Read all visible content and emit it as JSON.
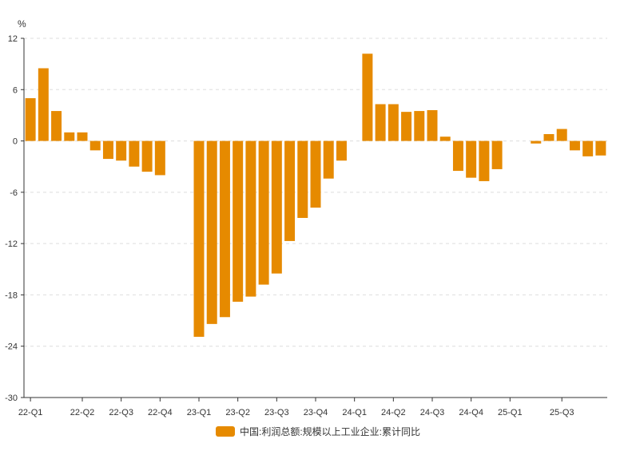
{
  "chart_data": {
    "type": "bar",
    "title": "",
    "xlabel": "",
    "ylabel": "%",
    "ylim": [
      -30,
      12
    ],
    "yticks": [
      12,
      6,
      0,
      -6,
      -12,
      -18,
      -24,
      -30
    ],
    "xtick_labels": [
      {
        "label": "22-Q1",
        "index": 0
      },
      {
        "label": "22-Q2",
        "index": 4
      },
      {
        "label": "22-Q3",
        "index": 7
      },
      {
        "label": "22-Q4",
        "index": 10
      },
      {
        "label": "23-Q1",
        "index": 13
      },
      {
        "label": "23-Q2",
        "index": 16
      },
      {
        "label": "23-Q3",
        "index": 19
      },
      {
        "label": "23-Q4",
        "index": 22
      },
      {
        "label": "24-Q1",
        "index": 25
      },
      {
        "label": "24-Q2",
        "index": 28
      },
      {
        "label": "24-Q3",
        "index": 31
      },
      {
        "label": "24-Q4",
        "index": 34
      },
      {
        "label": "25-Q1",
        "index": 37
      },
      {
        "label": "25-Q3",
        "index": 41
      }
    ],
    "grid": true,
    "legend_position": "bottom-center",
    "series": [
      {
        "name": "中国:利润总额:规模以上工业企业:累计同比",
        "color": "#E68A00",
        "values": [
          5.0,
          8.5,
          3.5,
          1.0,
          1.0,
          -1.1,
          -2.1,
          -2.3,
          -3.0,
          -3.6,
          -4.0,
          null,
          null,
          -22.9,
          -21.4,
          -20.6,
          -18.8,
          -18.2,
          -16.8,
          -15.5,
          -11.7,
          -9.0,
          -7.8,
          -4.4,
          -2.3,
          null,
          10.2,
          4.3,
          4.3,
          3.4,
          3.5,
          3.6,
          0.5,
          -3.5,
          -4.3,
          -4.7,
          -3.3,
          null,
          null,
          -0.3,
          0.8,
          1.4,
          -1.1,
          -1.8,
          -1.7
        ]
      }
    ]
  }
}
